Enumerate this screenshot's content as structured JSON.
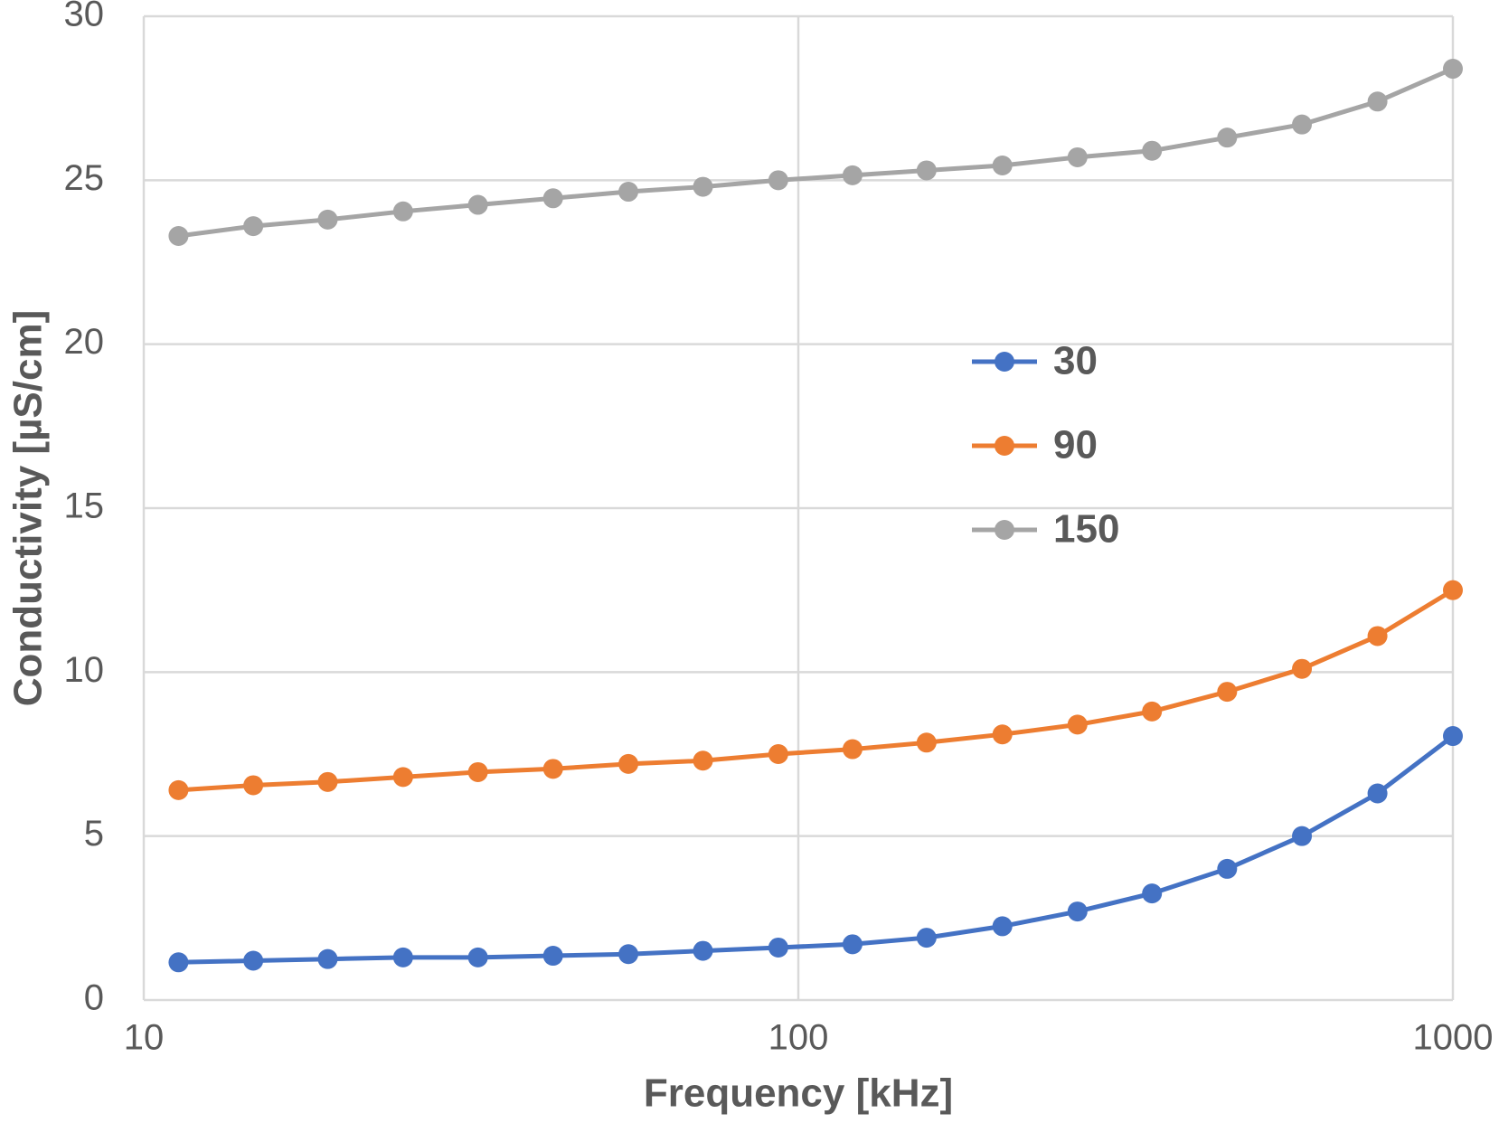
{
  "chart_data": {
    "type": "line",
    "x_label": "Frequency [kHz]",
    "y_label": "Conductivity [µS/cm]",
    "x": [
      11.3,
      14.7,
      19.1,
      24.9,
      32.4,
      42.2,
      55,
      71.5,
      93.2,
      121,
      157,
      205,
      267,
      347,
      452,
      588,
      767,
      1000
    ],
    "series": [
      {
        "name": "30",
        "color": "#4472c4",
        "values": [
          1.15,
          1.2,
          1.25,
          1.3,
          1.3,
          1.35,
          1.4,
          1.5,
          1.6,
          1.7,
          1.9,
          2.25,
          2.7,
          3.25,
          4.0,
          5.0,
          6.3,
          8.05
        ]
      },
      {
        "name": "90",
        "color": "#ed7d31",
        "values": [
          6.4,
          6.55,
          6.65,
          6.8,
          6.95,
          7.05,
          7.2,
          7.3,
          7.5,
          7.65,
          7.85,
          8.1,
          8.4,
          8.8,
          9.4,
          10.1,
          11.1,
          12.5
        ]
      },
      {
        "name": "150",
        "color": "#a5a5a5",
        "values": [
          23.3,
          23.6,
          23.8,
          24.05,
          24.25,
          24.45,
          24.65,
          24.8,
          25.0,
          25.15,
          25.3,
          25.45,
          25.7,
          25.9,
          26.3,
          26.7,
          27.4,
          28.4
        ]
      }
    ],
    "x_log": true,
    "xlim": [
      10,
      1000
    ],
    "xticks": [
      10,
      100,
      1000
    ],
    "ylim": [
      0,
      30
    ],
    "yticks": [
      0,
      5,
      10,
      15,
      20,
      25,
      30
    ],
    "grid": true,
    "legend_position": "center"
  }
}
